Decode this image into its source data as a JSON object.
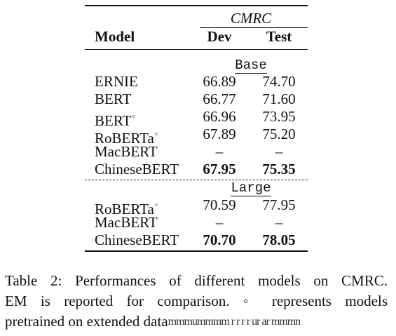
{
  "table": {
    "group_header": "CMRC",
    "columns": {
      "model": "Model",
      "dev": "Dev",
      "test": "Test"
    },
    "sections": [
      {
        "label": "Base",
        "rows": [
          {
            "model": "ERNIE",
            "sup": "",
            "dev": "66.89",
            "test": "74.70",
            "bold": false
          },
          {
            "model": "BERT",
            "sup": "",
            "dev": "66.77",
            "test": "71.60",
            "bold": false
          },
          {
            "model": "BERT",
            "sup": "◦",
            "dev": "66.96",
            "test": "73.95",
            "bold": false
          },
          {
            "model": "RoBERTa",
            "sup": "◦",
            "dev": "67.89",
            "test": "75.20",
            "bold": false
          },
          {
            "model": "MacBERT",
            "sup": "",
            "dev": "–",
            "test": "–",
            "bold": false
          },
          {
            "model": "ChineseBERT",
            "sup": "",
            "dev": "67.95",
            "test": "75.35",
            "bold": true
          }
        ]
      },
      {
        "label": "Large",
        "rows": [
          {
            "model": "RoBERTa",
            "sup": "◦",
            "dev": "70.59",
            "test": "77.95",
            "bold": false
          },
          {
            "model": "MacBERT",
            "sup": "",
            "dev": "–",
            "test": "–",
            "bold": false
          },
          {
            "model": "ChineseBERT",
            "sup": "",
            "dev": "70.70",
            "test": "78.05",
            "bold": true
          }
        ]
      }
    ]
  },
  "caption": {
    "line1": "Table 2: Performances of different models on CMRC.",
    "line2": "EM is reported for comparison. ◦ represents models",
    "line3": "pretrained on extended data",
    "line3_obscured": "mmmummmm r r r r ur ar mmmn"
  }
}
